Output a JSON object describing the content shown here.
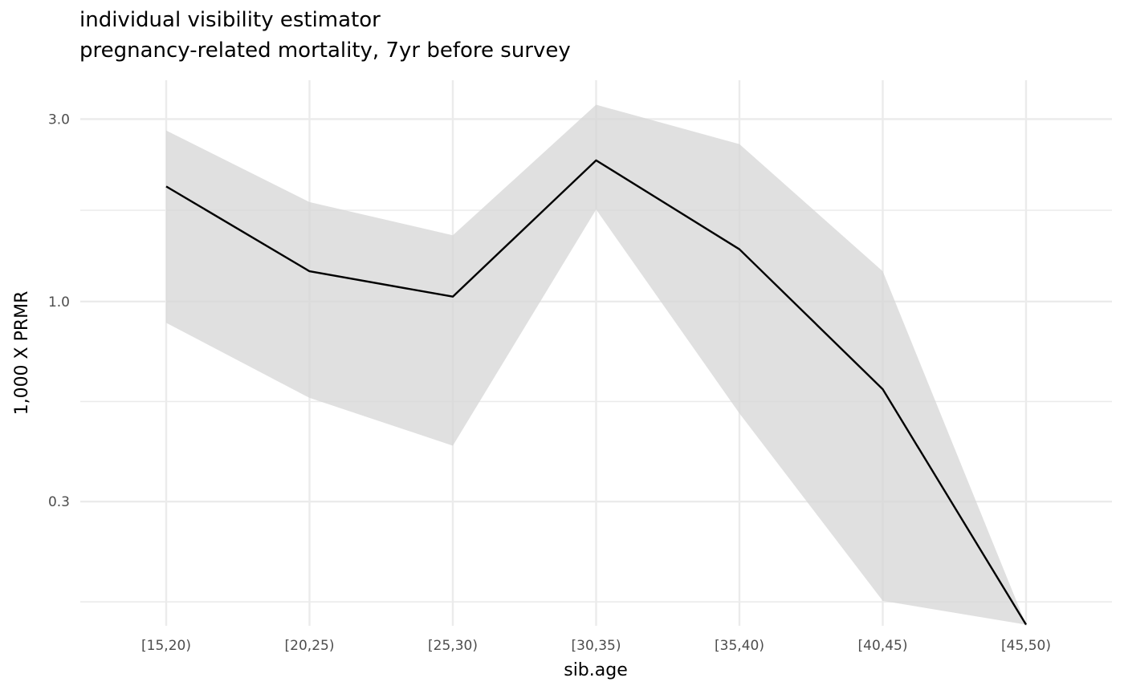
{
  "chart_data": {
    "type": "line",
    "title": "individual visibility estimator",
    "subtitle": "pregnancy-related mortality, 7yr before survey",
    "xlabel": "sib.age",
    "ylabel": "1,000 X PRMR",
    "yscale": "log10",
    "ylim": [
      0.142,
      3.79
    ],
    "y_ticks": [
      {
        "value": 3.0,
        "label": "3.0"
      },
      {
        "value": 1.0,
        "label": "1.0"
      },
      {
        "value": 0.3,
        "label": "0.3"
      }
    ],
    "y_minor_ticks": [
      1.732,
      0.548,
      0.164
    ],
    "grid": true,
    "categories": [
      "[15,20)",
      "[20,25)",
      "[25,30)",
      "[30,35)",
      "[35,40)",
      "[40,45)",
      "[45,50)"
    ],
    "series": [
      {
        "name": "estimate",
        "values": [
          2.0,
          1.2,
          1.03,
          2.34,
          1.37,
          0.59,
          0.143
        ]
      },
      {
        "name": "ci_lower",
        "values": [
          0.88,
          0.56,
          0.42,
          1.74,
          0.51,
          0.165,
          0.143
        ]
      },
      {
        "name": "ci_upper",
        "values": [
          2.8,
          1.82,
          1.49,
          3.27,
          2.58,
          1.2,
          0.143
        ]
      }
    ],
    "colors": {
      "line": "#000000",
      "ribbon": "#d6d6d6",
      "grid": "#ebebeb"
    }
  }
}
